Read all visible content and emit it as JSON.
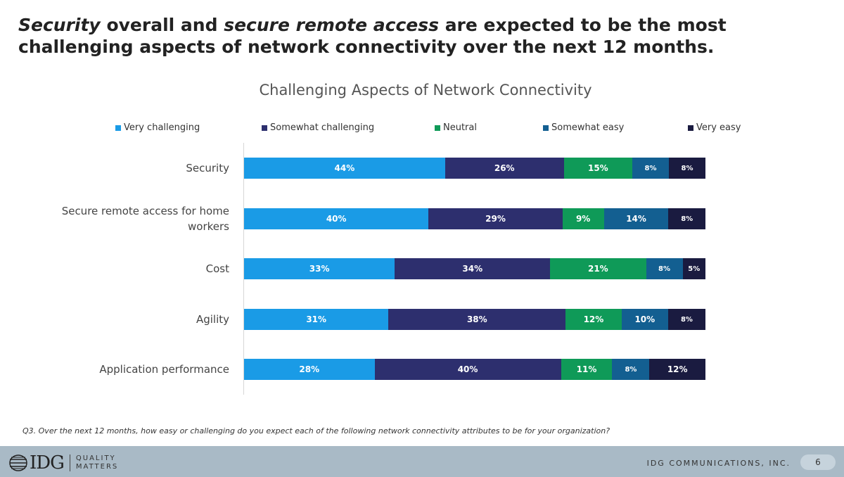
{
  "headline": {
    "part1": "Security",
    "part2": " overall and ",
    "part3": "secure remote access",
    "part4": " are expected to be the most challenging aspects of network connectivity over the next 12 months."
  },
  "footnote": "Q3. Over the next 12 months, how easy or challenging do you expect each of the following network connectivity attributes to be for your organization?",
  "footer": {
    "logo_text": "IDG",
    "tagline_line1": "QUALITY",
    "tagline_line2": "MATTERS",
    "company": "IDG COMMUNICATIONS, INC.",
    "page_number": "6"
  },
  "chart_data": {
    "type": "bar",
    "orientation": "horizontal",
    "stacked": true,
    "title": "Challenging Aspects of Network Connectivity",
    "legend_position": "top",
    "categories": [
      "Security",
      "Secure remote access for home workers",
      "Cost",
      "Agility",
      "Application performance"
    ],
    "series": [
      {
        "name": "Very challenging",
        "color": "#1a9be6",
        "values": [
          44,
          40,
          33,
          31,
          28
        ],
        "labels": [
          "44%",
          "40%",
          "33%",
          "31%",
          "28%"
        ]
      },
      {
        "name": "Somewhat challenging",
        "color": "#2d2f6e",
        "values": [
          26,
          29,
          34,
          38,
          40
        ],
        "labels": [
          "26%",
          "29%",
          "34%",
          "38%",
          "40%"
        ]
      },
      {
        "name": "Neutral",
        "color": "#0f9a58",
        "values": [
          15,
          9,
          21,
          12,
          11
        ],
        "labels": [
          "15%",
          "9%",
          "21%",
          "12%",
          "11%"
        ]
      },
      {
        "name": "Somewhat easy",
        "color": "#135f91",
        "values": [
          8,
          14,
          8,
          10,
          8
        ],
        "labels": [
          "8%",
          "14%",
          "8%",
          "10%",
          "8%"
        ]
      },
      {
        "name": "Very easy",
        "color": "#1a1b40",
        "values": [
          8,
          8,
          5,
          8,
          12
        ],
        "labels": [
          "8%",
          "8%",
          "5%",
          "8%",
          "12%"
        ]
      }
    ]
  }
}
